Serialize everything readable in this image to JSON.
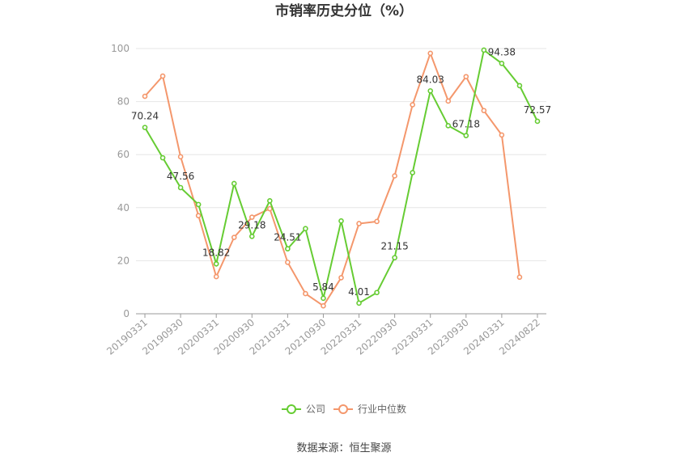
{
  "chart_data": {
    "type": "line",
    "title": "市销率历史分位（%）",
    "x": [
      "20190331",
      "20190630",
      "20190930",
      "20191231",
      "20200331",
      "20200630",
      "20200930",
      "20201231",
      "20210331",
      "20210630",
      "20210930",
      "20211231",
      "20220331",
      "20220630",
      "20220930",
      "20221231",
      "20230331",
      "20230630",
      "20230930",
      "20231231",
      "20240331",
      "20240630",
      "20240822"
    ],
    "x_tick_labels": [
      "20190331",
      "20190930",
      "20200331",
      "20200930",
      "20210331",
      "20210930",
      "20220331",
      "20220930",
      "20230331",
      "20230930",
      "20240331",
      "20240822"
    ],
    "ylim": [
      0,
      100
    ],
    "y_ticks": [
      0,
      20,
      40,
      60,
      80,
      100
    ],
    "grid": true,
    "legend_position": "bottom",
    "series": [
      {
        "name": "公司",
        "color": "#66cc33",
        "values": [
          70.24,
          58.8,
          47.56,
          41.2,
          18.82,
          49.1,
          29.18,
          42.6,
          24.51,
          32.1,
          5.84,
          35.0,
          4.01,
          8.0,
          21.15,
          53.2,
          84.03,
          70.9,
          67.18,
          99.4,
          94.38,
          86.0,
          72.57
        ],
        "labels": {
          "0": "70.24",
          "2": "47.56",
          "4": "18.82",
          "6": "29.18",
          "8": "24.51",
          "10": "5.84",
          "12": "4.01",
          "14": "21.15",
          "16": "84.03",
          "18": "67.18",
          "20": "94.38",
          "22": "72.57"
        }
      },
      {
        "name": "行业中位数",
        "color": "#f4976c",
        "values": [
          82.0,
          89.6,
          59.2,
          37.0,
          14.0,
          28.8,
          36.4,
          39.6,
          19.4,
          7.6,
          3.0,
          13.6,
          34.0,
          34.8,
          52.0,
          78.8,
          98.2,
          80.2,
          89.4,
          76.6,
          67.4,
          13.8,
          null
        ]
      }
    ],
    "source": "数据来源：恒生聚源"
  }
}
